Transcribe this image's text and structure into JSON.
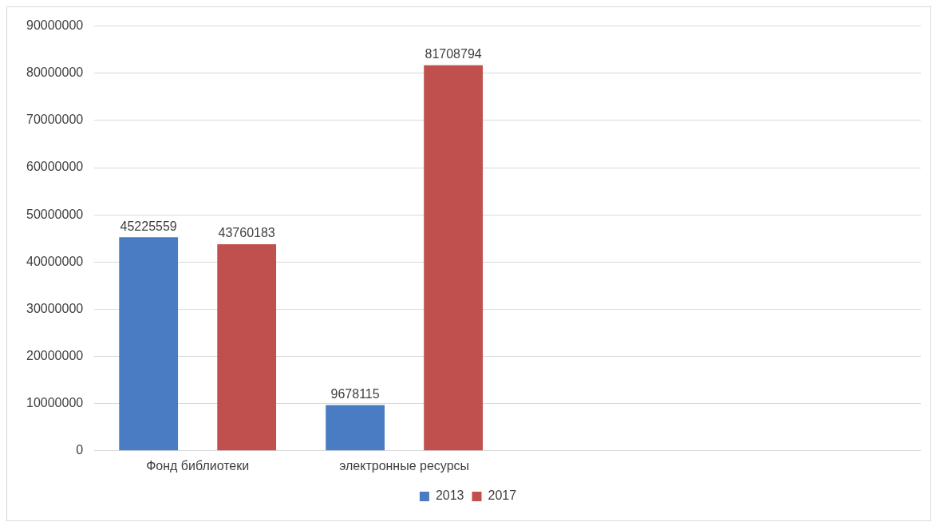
{
  "chart_data": {
    "type": "bar",
    "categories": [
      "Фонд библиотеки",
      "электронные ресурсы",
      null,
      null
    ],
    "series": [
      {
        "name": "2013",
        "color": "#4a7cc4",
        "values": [
          45225559,
          9678115,
          null,
          null
        ]
      },
      {
        "name": "2017",
        "color": "#c0504d",
        "values": [
          43760183,
          81708794,
          null,
          null
        ]
      }
    ],
    "ylim": [
      0,
      90000000
    ],
    "yticks": [
      0,
      10000000,
      20000000,
      30000000,
      40000000,
      50000000,
      60000000,
      70000000,
      80000000,
      90000000
    ],
    "grid": "y",
    "legend": "bottom",
    "data_labels": true
  }
}
